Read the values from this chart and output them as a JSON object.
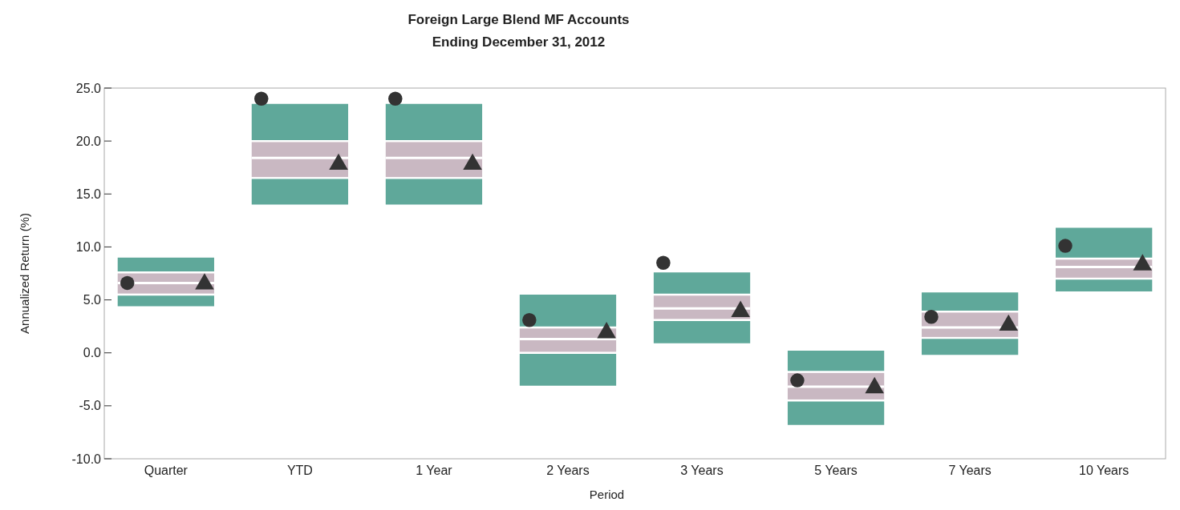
{
  "chart_data": {
    "type": "box",
    "title": "Foreign Large Blend MF Accounts",
    "subtitle": "Ending December 31, 2012",
    "xlabel": "Period",
    "ylabel": "Annualized Return (%)",
    "categories": [
      "Quarter",
      "YTD",
      "1 Year",
      "2 Years",
      "3 Years",
      "5 Years",
      "7 Years",
      "10 Years"
    ],
    "boxes": [
      {
        "low": 4.4,
        "q1": 5.6,
        "median": 6.6,
        "q3": 7.5,
        "high": 9.0
      },
      {
        "low": 14.0,
        "q1": 16.6,
        "median": 18.4,
        "q3": 19.9,
        "high": 23.5
      },
      {
        "low": 14.0,
        "q1": 16.6,
        "median": 18.4,
        "q3": 19.9,
        "high": 23.5
      },
      {
        "low": -3.1,
        "q1": 0.1,
        "median": 1.3,
        "q3": 2.3,
        "high": 5.5
      },
      {
        "low": 0.9,
        "q1": 3.2,
        "median": 4.2,
        "q3": 5.4,
        "high": 7.6
      },
      {
        "low": -6.8,
        "q1": -4.4,
        "median": -3.2,
        "q3": -1.9,
        "high": 0.2
      },
      {
        "low": -0.2,
        "q1": 1.5,
        "median": 2.4,
        "q3": 3.8,
        "high": 5.7
      },
      {
        "low": 5.8,
        "q1": 7.1,
        "median": 8.1,
        "q3": 8.8,
        "high": 11.8
      }
    ],
    "color": "#c9b8c2",
    "series": [
      {
        "type": "scatter",
        "marker": "circle",
        "color": "#333333",
        "x": [
          "Quarter",
          "YTD",
          "1 Year",
          "2 Years",
          "3 Years",
          "5 Years",
          "7 Years",
          "10 Years"
        ],
        "values": [
          6.6,
          24.0,
          24.0,
          3.1,
          8.5,
          -2.6,
          3.4,
          10.1
        ]
      },
      {
        "type": "scatter",
        "marker": "triangle",
        "color": "#333333",
        "x": [
          "Quarter",
          "YTD",
          "1 Year",
          "2 Years",
          "3 Years",
          "5 Years",
          "7 Years",
          "10 Years"
        ],
        "values": [
          6.5,
          17.8,
          17.8,
          1.9,
          3.9,
          -3.3,
          2.6,
          8.3
        ]
      }
    ],
    "ylim": [
      -10,
      25
    ],
    "yticks": [
      {
        "value": -10,
        "label": "-10.0"
      },
      {
        "value": -5,
        "label": "-5.0"
      },
      {
        "value": 0,
        "label": "0.0"
      },
      {
        "value": 5,
        "label": "5.0"
      },
      {
        "value": 10,
        "label": "10.0"
      },
      {
        "value": 15,
        "label": "15.0"
      },
      {
        "value": 20,
        "label": "20.0"
      },
      {
        "value": 25,
        "label": "25.0"
      }
    ]
  }
}
